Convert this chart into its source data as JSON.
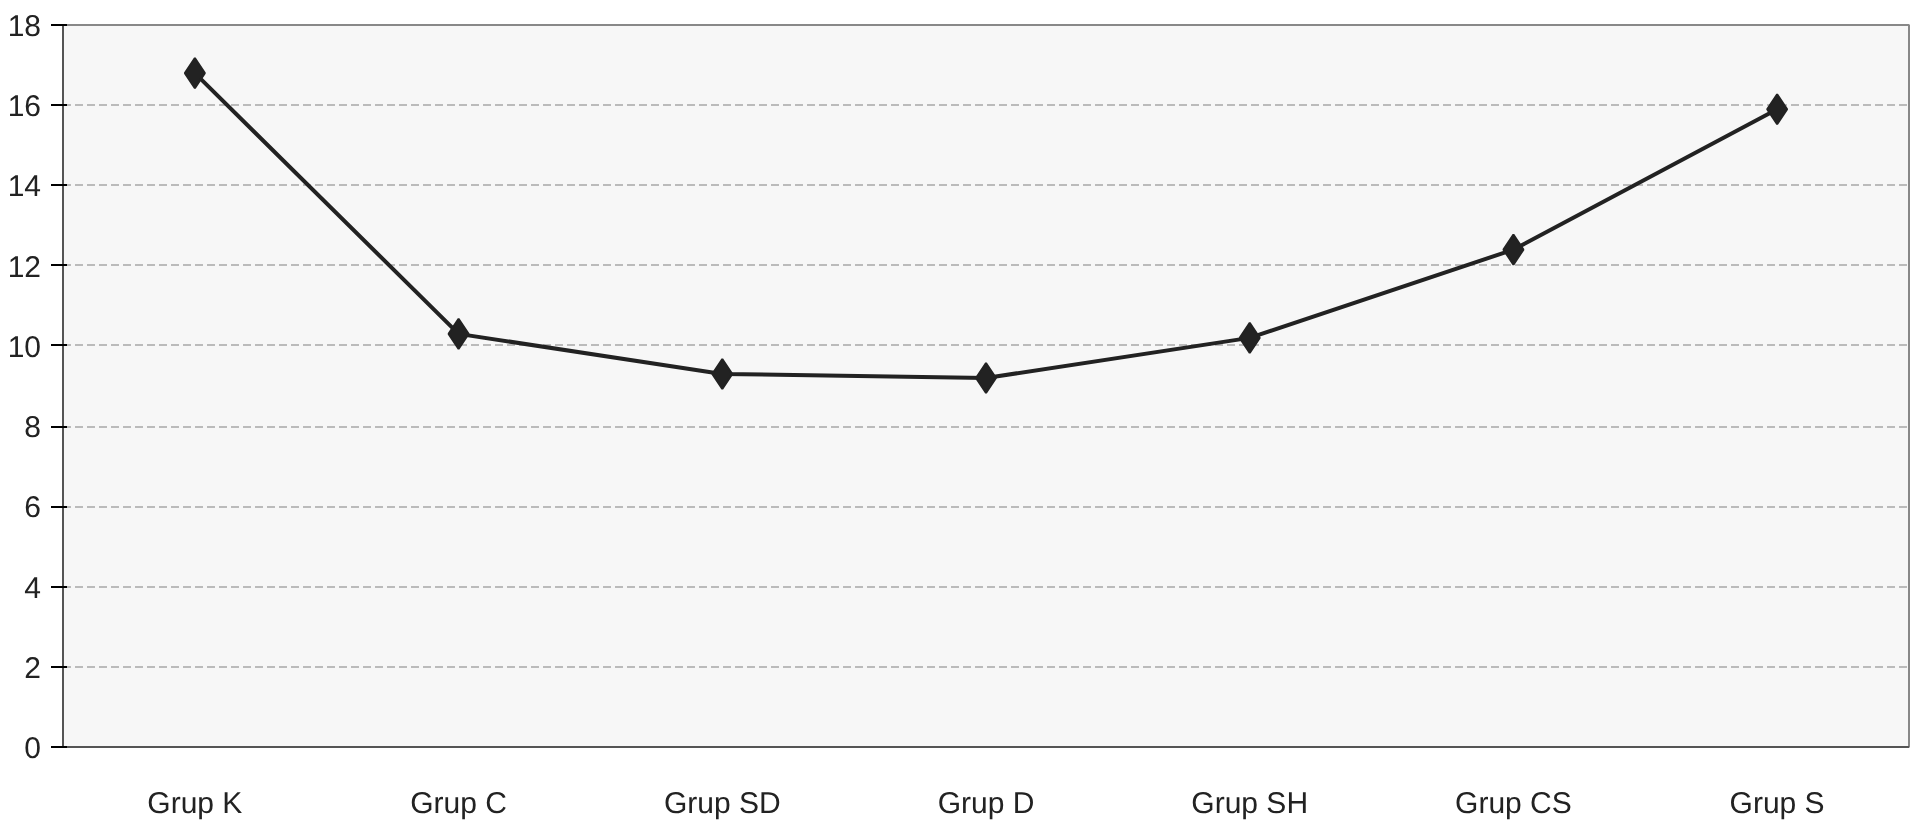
{
  "chart_data": {
    "type": "line",
    "categories": [
      "Grup K",
      "Grup C",
      "Grup SD",
      "Grup D",
      "Grup SH",
      "Grup CS",
      "Grup S"
    ],
    "values": [
      16.8,
      10.3,
      9.3,
      9.2,
      10.2,
      12.4,
      15.9
    ],
    "color": "#222222",
    "marker": "diamond",
    "line_style": "solid",
    "ylim": [
      0,
      18
    ],
    "yticks": [
      0,
      2,
      4,
      6,
      8,
      10,
      12,
      14,
      16,
      18
    ],
    "grid": "y"
  }
}
